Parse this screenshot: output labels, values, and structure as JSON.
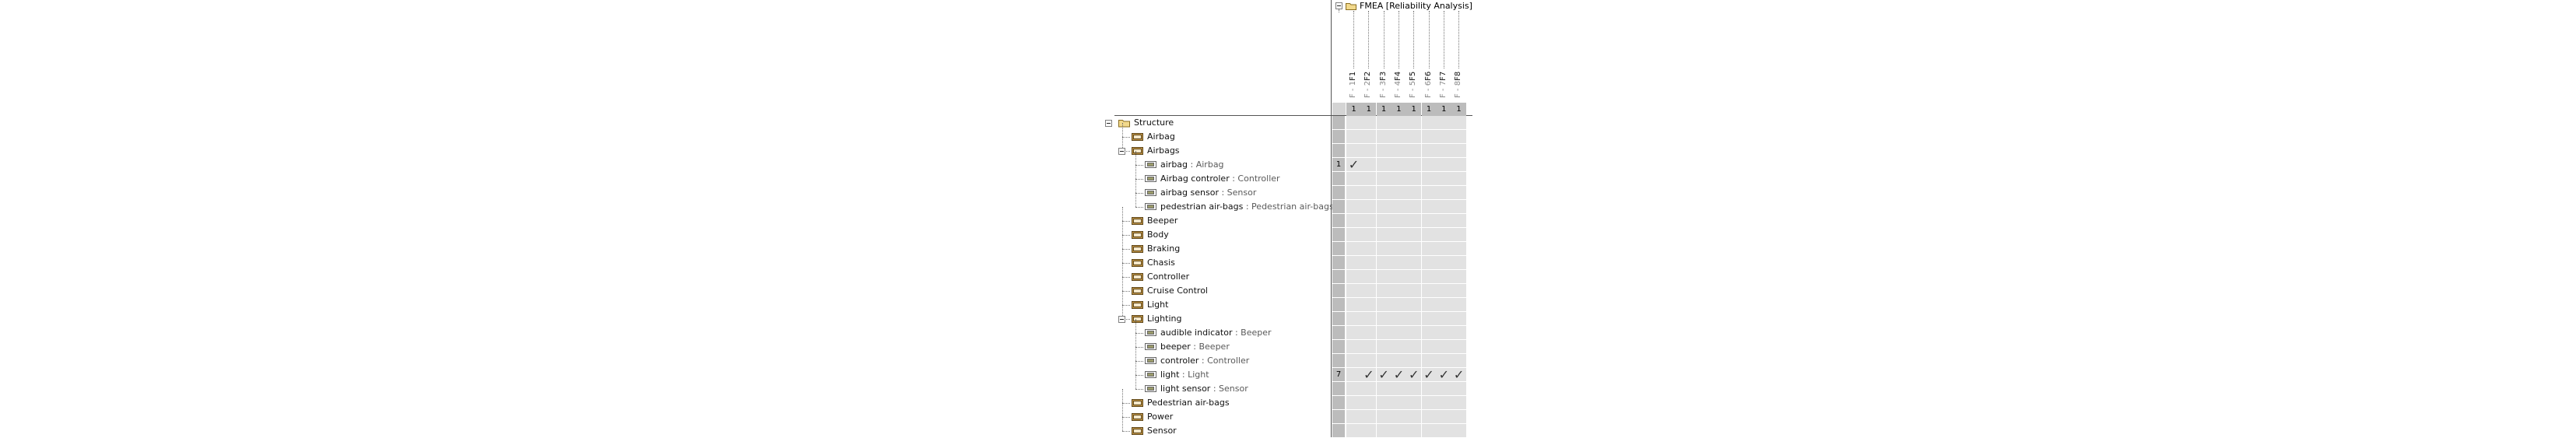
{
  "column_group": {
    "label": "FMEA [Reliability Analysis]"
  },
  "columns": [
    {
      "name": "F1",
      "type": "F - 1",
      "count": "1"
    },
    {
      "name": "F2",
      "type": "F - 2",
      "count": "1"
    },
    {
      "name": "F3",
      "type": "F - 3",
      "count": "1"
    },
    {
      "name": "F4",
      "type": "F - 4",
      "count": "1"
    },
    {
      "name": "F5",
      "type": "F - 5",
      "count": "1"
    },
    {
      "name": "F6",
      "type": "F - 6",
      "count": "1"
    },
    {
      "name": "F7",
      "type": "F - 7",
      "count": "1"
    },
    {
      "name": "F8",
      "type": "F - 8",
      "count": "1"
    }
  ],
  "rows": [
    {
      "level": 0,
      "kind": "folder",
      "expanded": true,
      "name": "Structure",
      "type": "",
      "count": ""
    },
    {
      "level": 1,
      "kind": "package",
      "expanded": false,
      "name": "Airbag",
      "type": "",
      "count": ""
    },
    {
      "level": 1,
      "kind": "package",
      "expanded": true,
      "name": "Airbags",
      "type": "",
      "count": ""
    },
    {
      "level": 2,
      "kind": "part",
      "expanded": false,
      "name": "airbag",
      "type": " : Airbag",
      "count": "1"
    },
    {
      "level": 2,
      "kind": "part",
      "expanded": false,
      "name": "Airbag controler",
      "type": " : Controller",
      "count": ""
    },
    {
      "level": 2,
      "kind": "part",
      "expanded": false,
      "name": "airbag sensor",
      "type": " : Sensor",
      "count": ""
    },
    {
      "level": 2,
      "kind": "part",
      "expanded": false,
      "name": "pedestrian air-bags",
      "type": " : Pedestrian air-bags",
      "count": ""
    },
    {
      "level": 1,
      "kind": "package",
      "expanded": false,
      "name": "Beeper",
      "type": "",
      "count": ""
    },
    {
      "level": 1,
      "kind": "package",
      "expanded": false,
      "name": "Body",
      "type": "",
      "count": ""
    },
    {
      "level": 1,
      "kind": "package",
      "expanded": false,
      "name": "Braking",
      "type": "",
      "count": ""
    },
    {
      "level": 1,
      "kind": "package",
      "expanded": false,
      "name": "Chasis",
      "type": "",
      "count": ""
    },
    {
      "level": 1,
      "kind": "package",
      "expanded": false,
      "name": "Controller",
      "type": "",
      "count": ""
    },
    {
      "level": 1,
      "kind": "package",
      "expanded": false,
      "name": "Cruise Control",
      "type": "",
      "count": ""
    },
    {
      "level": 1,
      "kind": "package",
      "expanded": false,
      "name": "Light",
      "type": "",
      "count": ""
    },
    {
      "level": 1,
      "kind": "package",
      "expanded": true,
      "name": "Lighting",
      "type": "",
      "count": ""
    },
    {
      "level": 2,
      "kind": "part",
      "expanded": false,
      "name": "audible indicator",
      "type": " : Beeper",
      "count": ""
    },
    {
      "level": 2,
      "kind": "part",
      "expanded": false,
      "name": "beeper",
      "type": " : Beeper",
      "count": ""
    },
    {
      "level": 2,
      "kind": "part",
      "expanded": false,
      "name": "controler",
      "type": " : Controller",
      "count": ""
    },
    {
      "level": 2,
      "kind": "part",
      "expanded": false,
      "name": "light",
      "type": " : Light",
      "count": "7"
    },
    {
      "level": 2,
      "kind": "part",
      "expanded": false,
      "name": "light sensor",
      "type": " : Sensor",
      "count": ""
    },
    {
      "level": 1,
      "kind": "package",
      "expanded": false,
      "name": "Pedestrian air-bags",
      "type": "",
      "count": ""
    },
    {
      "level": 1,
      "kind": "package",
      "expanded": false,
      "name": "Power",
      "type": "",
      "count": ""
    },
    {
      "level": 1,
      "kind": "package",
      "expanded": false,
      "name": "Sensor",
      "type": "",
      "count": ""
    }
  ],
  "checks": [
    {
      "row": 3,
      "col": 0
    },
    {
      "row": 18,
      "col": 1
    },
    {
      "row": 18,
      "col": 2
    },
    {
      "row": 18,
      "col": 3
    },
    {
      "row": 18,
      "col": 4
    },
    {
      "row": 18,
      "col": 5
    },
    {
      "row": 18,
      "col": 6
    },
    {
      "row": 18,
      "col": 7
    }
  ],
  "icons": {
    "check": "✓",
    "folder": "folder-icon",
    "package": "package-icon",
    "part": "part-icon",
    "column": "failure-mode-icon"
  },
  "colors": {
    "cell_bg": "#e2e2e2",
    "count_bg": "#bcbcbc",
    "grid_line": "#ffffff",
    "pkg_fill": "#c79a4a",
    "part_fill": "#9b9b6b",
    "folder_fill": "#f2d98c"
  }
}
